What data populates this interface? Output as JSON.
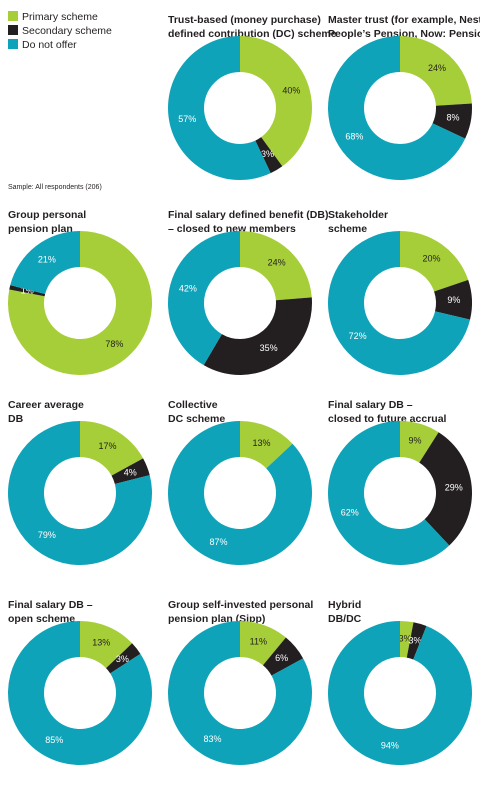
{
  "legend": {
    "categories": [
      "Primary scheme",
      "Secondary scheme",
      "Do not offer"
    ],
    "colors": [
      "#a6ce39",
      "#231f20",
      "#0fa3b9"
    ]
  },
  "note": "Sample: All respondents (206)",
  "chart_data": [
    {
      "type": "pie",
      "title": [
        "Trust-based (money purchase)",
        "defined contribution (DC) scheme"
      ],
      "values": [
        40,
        3,
        57
      ]
    },
    {
      "type": "pie",
      "title": [
        "Master trust (for example, Nest, The",
        "People’s Pension, Now: Pensions)"
      ],
      "values": [
        24,
        8,
        68
      ]
    },
    {
      "type": "pie",
      "title": [
        "Group personal",
        "pension plan"
      ],
      "values": [
        78,
        1,
        21
      ]
    },
    {
      "type": "pie",
      "title": [
        "Final salary defined benefit (DB)",
        "– closed to new members"
      ],
      "values": [
        24,
        35,
        42
      ]
    },
    {
      "type": "pie",
      "title": [
        "Stakeholder",
        "scheme"
      ],
      "values": [
        20,
        9,
        72
      ]
    },
    {
      "type": "pie",
      "title": [
        "Career average",
        "DB"
      ],
      "values": [
        17,
        4,
        79
      ]
    },
    {
      "type": "pie",
      "title": [
        "Collective",
        "DC scheme"
      ],
      "values": [
        13,
        null,
        87
      ]
    },
    {
      "type": "pie",
      "title": [
        "Final salary DB –",
        "closed to future accrual"
      ],
      "values": [
        9,
        29,
        62
      ]
    },
    {
      "type": "pie",
      "title": [
        "Final salary DB –",
        "open scheme"
      ],
      "values": [
        13,
        3,
        85
      ]
    },
    {
      "type": "pie",
      "title": [
        "Group self-invested personal",
        "pension plan (Sipp)"
      ],
      "values": [
        11,
        6,
        83
      ]
    },
    {
      "type": "pie",
      "title": [
        "Hybrid",
        "DB/DC"
      ],
      "values": [
        3,
        3,
        94
      ]
    }
  ]
}
